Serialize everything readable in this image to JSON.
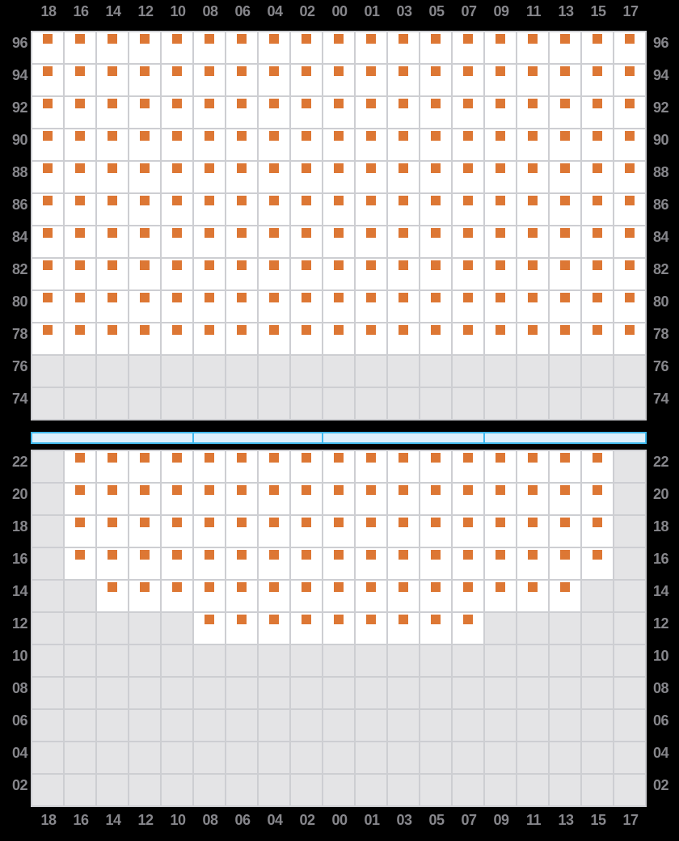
{
  "colors": {
    "background": "#000000",
    "label_text": "#86868b",
    "grid_line": "#cdced2",
    "available_cell": "#ffffff",
    "unavailable_cell": "#e4e4e6",
    "seat_marker_orange": "#dd7734",
    "aisle_fill": "#dceffb",
    "aisle_border": "#41b9ed"
  },
  "columns": [
    "18",
    "16",
    "14",
    "12",
    "10",
    "08",
    "06",
    "04",
    "02",
    "00",
    "01",
    "03",
    "05",
    "07",
    "09",
    "11",
    "13",
    "15",
    "17"
  ],
  "top_panel": {
    "rows": [
      {
        "label": "96",
        "mask": "1111111111111111111"
      },
      {
        "label": "94",
        "mask": "1111111111111111111"
      },
      {
        "label": "92",
        "mask": "1111111111111111111"
      },
      {
        "label": "90",
        "mask": "1111111111111111111"
      },
      {
        "label": "88",
        "mask": "1111111111111111111"
      },
      {
        "label": "86",
        "mask": "1111111111111111111"
      },
      {
        "label": "84",
        "mask": "1111111111111111111"
      },
      {
        "label": "82",
        "mask": "1111111111111111111"
      },
      {
        "label": "80",
        "mask": "1111111111111111111"
      },
      {
        "label": "78",
        "mask": "1111111111111111111"
      },
      {
        "label": "76",
        "mask": "0000000000000000000"
      },
      {
        "label": "74",
        "mask": "0000000000000000000"
      }
    ]
  },
  "aisle_bar": {
    "segments": [
      {
        "span_columns": 5
      },
      {
        "span_columns": 4
      },
      {
        "span_columns": 5
      },
      {
        "span_columns": 5
      }
    ]
  },
  "bottom_panel": {
    "rows": [
      {
        "label": "22",
        "mask": "0111111111111111110"
      },
      {
        "label": "20",
        "mask": "0111111111111111110"
      },
      {
        "label": "18",
        "mask": "0111111111111111110"
      },
      {
        "label": "16",
        "mask": "0111111111111111110"
      },
      {
        "label": "14",
        "mask": "0011111111111111100"
      },
      {
        "label": "12",
        "mask": "0000011111111100000"
      },
      {
        "label": "10",
        "mask": "0000000000000000000"
      },
      {
        "label": "08",
        "mask": "0000000000000000000"
      },
      {
        "label": "06",
        "mask": "0000000000000000000"
      },
      {
        "label": "04",
        "mask": "0000000000000000000"
      },
      {
        "label": "02",
        "mask": "0000000000000000000"
      }
    ]
  }
}
